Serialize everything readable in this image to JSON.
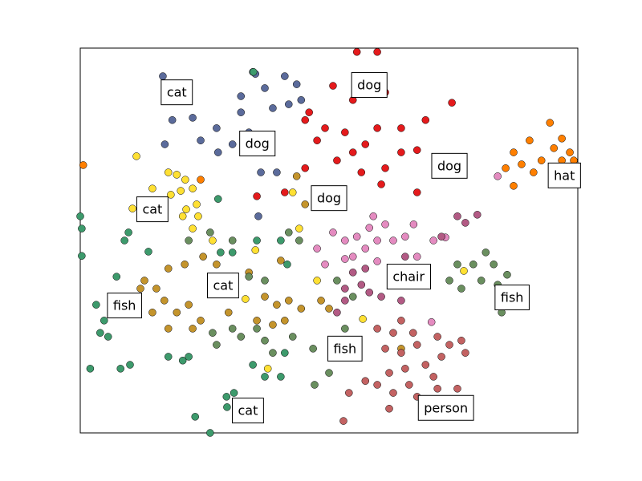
{
  "chart_data": {
    "type": "scatter",
    "xlim": [
      0,
      100
    ],
    "ylim": [
      0,
      100
    ],
    "series": [
      {
        "color": "#5b6b9b",
        "x": [
          16.6,
          18.5,
          22.6,
          27.4,
          27.7,
          32.3,
          34.7,
          37.1,
          41.1,
          43.5,
          41.9,
          38.7,
          32.3,
          33.9,
          30.6,
          36.3,
          39.5,
          35.8,
          17,
          24.2,
          35.2,
          44.4
        ],
        "values": [
          92.7,
          81.3,
          81.9,
          79.2,
          72.9,
          87.5,
          93.8,
          89.6,
          92.7,
          90.6,
          85.4,
          84.4,
          83.3,
          78.1,
          75,
          67.7,
          67.7,
          56.3,
          75,
          76,
          93.3,
          86.5
        ]
      },
      {
        "color": "#e41a1c",
        "x": [
          55.6,
          59.7,
          50.8,
          54.8,
          61.3,
          49.2,
          53.2,
          57.3,
          59.7,
          64.5,
          67.7,
          61.3,
          54.8,
          51.6,
          47.6,
          45.2,
          41.1,
          35.5,
          46,
          69.4,
          74.7,
          60.5,
          64.5,
          56.5,
          45.2,
          67.7
        ],
        "values": [
          99,
          99,
          90.2,
          86.5,
          88.5,
          79.2,
          78.1,
          75,
          79.2,
          79.2,
          73.5,
          68.8,
          72.9,
          70.8,
          76,
          68.8,
          62.5,
          61.5,
          83.3,
          81.3,
          85.8,
          64.6,
          72.9,
          67.7,
          81.3,
          62.5
        ]
      },
      {
        "color": "#ff7f00",
        "x": [
          94.4,
          90.3,
          87.1,
          88.7,
          95.2,
          98.4,
          96.8,
          92.7,
          91.1,
          87.1,
          96.8,
          99.2,
          0.6,
          24.2,
          85.5
        ],
        "values": [
          80.6,
          76,
          72.9,
          69.8,
          74,
          72.9,
          76.5,
          70.8,
          67.7,
          64.2,
          70.8,
          70.8,
          69.6,
          65.8,
          68.8
        ]
      },
      {
        "color": "#ffe033",
        "x": [
          11.3,
          17.7,
          19.4,
          21.1,
          22.6,
          14.5,
          18.2,
          20.2,
          21.3,
          23.4,
          10.5,
          20.6,
          22.6,
          23.7,
          26.6,
          35.2,
          42.7,
          44,
          47.6,
          33.2,
          37.7,
          77.1,
          56.8
        ],
        "values": [
          71.9,
          67.7,
          67.1,
          65.8,
          63.5,
          63.5,
          61.9,
          62.9,
          58.1,
          59.4,
          58.3,
          56.3,
          53.1,
          56.3,
          50,
          47.5,
          62.5,
          53.1,
          39.6,
          34.8,
          16.7,
          42.1,
          29.6
        ]
      },
      {
        "color": "#e48bc0",
        "x": [
          50.8,
          53.2,
          55.6,
          58.1,
          61.3,
          54.8,
          57.3,
          59.7,
          62.9,
          65.3,
          67,
          71,
          73.4,
          47.6,
          49.2,
          53.2,
          59.7,
          67.7,
          83.9,
          70.6,
          58.9
        ],
        "values": [
          52.1,
          50,
          51,
          53.3,
          54.2,
          45.8,
          47.9,
          50,
          50,
          51,
          54.2,
          50,
          50.8,
          47.9,
          43.8,
          45.2,
          44.6,
          45.8,
          66.7,
          28.8,
          56.3
        ]
      },
      {
        "color": "#b25a84",
        "x": [
          75.8,
          79.8,
          77.4,
          53.2,
          56.5,
          58.1,
          60.5,
          64.5,
          57.3,
          54.8,
          72.6,
          65.3,
          51.6,
          53.2
        ],
        "values": [
          56.3,
          56.7,
          54.6,
          37.5,
          38.5,
          36.5,
          35.4,
          34.4,
          42.7,
          41.7,
          51,
          45.8,
          31.3,
          34.4
        ]
      },
      {
        "color": "#c4942c",
        "x": [
          12.9,
          15.3,
          16.9,
          17.7,
          14.5,
          19.4,
          21.8,
          24.2,
          21,
          24.7,
          27.4,
          30.6,
          33.9,
          37.1,
          39.5,
          41.9,
          44.4,
          41.1,
          38.7,
          35.5,
          48.4,
          50,
          43.5,
          45.2,
          17.7,
          12.1,
          29.8,
          40.3,
          64.5,
          22.6
        ],
        "values": [
          39.6,
          37.5,
          34.4,
          27.1,
          31.3,
          31.3,
          33.3,
          29.2,
          43.8,
          45.8,
          43.8,
          40.6,
          41.7,
          35.4,
          33.3,
          34.4,
          32.3,
          29.2,
          28.1,
          29.2,
          34.4,
          32.3,
          66.7,
          59.4,
          42.7,
          37.5,
          31.3,
          44.8,
          21.9,
          27.1
        ]
      },
      {
        "color": "#3d9a6c",
        "x": [
          0,
          0.3,
          0.3,
          9.7,
          8.9,
          13.7,
          7.3,
          3.2,
          4.8,
          4,
          5.6,
          2,
          8.1,
          10,
          17.7,
          20.6,
          21.8,
          29.4,
          29.5,
          23.1,
          26.1,
          30.9,
          34.7,
          37.1,
          40.3,
          41.1,
          34.8,
          40.3,
          41.6,
          35.5,
          30.6,
          27.7,
          28.2
        ],
        "values": [
          56.3,
          53.1,
          46,
          52.1,
          50,
          47.1,
          40.6,
          33.3,
          29.2,
          26,
          25,
          16.7,
          16.7,
          17.7,
          19.8,
          18.8,
          19.8,
          9.4,
          6.7,
          4.2,
          0,
          10.4,
          17.7,
          14.6,
          14.6,
          20.8,
          93.8,
          50,
          43.8,
          50,
          46.9,
          60.8,
          46.9
        ]
      },
      {
        "color": "#6a8f5f",
        "x": [
          75.8,
          79,
          81.5,
          83.1,
          83.9,
          85.8,
          84.7,
          76.6,
          74.2,
          80.6,
          26.6,
          27.4,
          32.3,
          30.6,
          35.5,
          37.1,
          38.7,
          42.7,
          46.8,
          50,
          47.1,
          53.2,
          54.8,
          51.6,
          33.9,
          37.1,
          30.6,
          26.1,
          21.8,
          41.9,
          44
        ],
        "values": [
          43.8,
          43.8,
          46.9,
          43.8,
          38.5,
          41.1,
          31.3,
          37.5,
          39.6,
          39.6,
          26,
          22.9,
          25,
          27.1,
          27.1,
          24,
          20.8,
          25,
          21.9,
          15.6,
          12.5,
          27.1,
          35.4,
          39.6,
          40.6,
          39.6,
          50,
          52.1,
          50,
          52.1,
          50
        ]
      },
      {
        "color": "#c36262",
        "x": [
          59.7,
          62.9,
          66.9,
          61.3,
          64.5,
          67.7,
          71.8,
          74.2,
          76.6,
          72.6,
          69.4,
          65.3,
          62.1,
          59.7,
          62.9,
          66.1,
          67.7,
          71.8,
          75.8,
          54,
          57.3,
          62.1,
          52.9,
          71,
          77.4,
          64.5
        ],
        "values": [
          27.1,
          26,
          26,
          21.9,
          20.8,
          22.9,
          25,
          22.9,
          24,
          19.8,
          17.7,
          16.7,
          15.6,
          12.5,
          10.4,
          12.5,
          9.4,
          11.5,
          11.5,
          10.4,
          13.5,
          6.3,
          3.1,
          14.6,
          20.8,
          29.2
        ]
      }
    ],
    "annotations": [
      {
        "text": "cat",
        "x": 19.4,
        "y": 88.3
      },
      {
        "text": "dog",
        "x": 58.1,
        "y": 90.2
      },
      {
        "text": "dog",
        "x": 35.6,
        "y": 75
      },
      {
        "text": "dog",
        "x": 74.2,
        "y": 69.2
      },
      {
        "text": "hat",
        "x": 97.3,
        "y": 66.7
      },
      {
        "text": "cat",
        "x": 14.5,
        "y": 57.9
      },
      {
        "text": "dog",
        "x": 50,
        "y": 60.8
      },
      {
        "text": "chair",
        "x": 66,
        "y": 40.4
      },
      {
        "text": "cat",
        "x": 28.7,
        "y": 38.1
      },
      {
        "text": "fish",
        "x": 8.9,
        "y": 32.9
      },
      {
        "text": "fish",
        "x": 86.8,
        "y": 35
      },
      {
        "text": "fish",
        "x": 53.2,
        "y": 21.7
      },
      {
        "text": "cat",
        "x": 33.7,
        "y": 5.6
      },
      {
        "text": "person",
        "x": 73.5,
        "y": 6.3
      }
    ]
  }
}
